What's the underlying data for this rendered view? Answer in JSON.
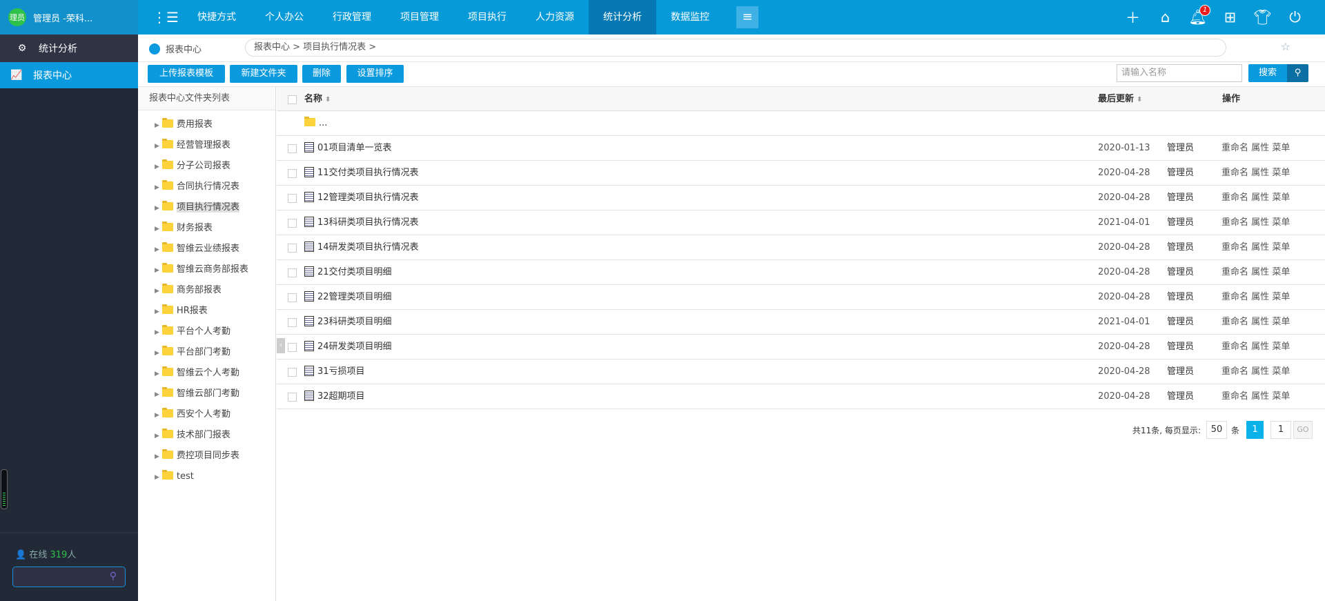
{
  "user": {
    "avatar_text": "理员",
    "name": "管理员 -荣科..."
  },
  "sidebar": {
    "section": "统计分析",
    "active_item": "报表中心",
    "online_label": "在线",
    "online_count": "319",
    "online_unit": "人"
  },
  "nav": {
    "items": [
      "快捷方式",
      "个人办公",
      "行政管理",
      "项目管理",
      "项目执行",
      "人力资源",
      "统计分析",
      "数据监控"
    ],
    "active": "统计分析",
    "notification_count": "1"
  },
  "breadcrumb": {
    "title": "报表中心",
    "path": "报表中心 > 项目执行情况表  >"
  },
  "toolbar": {
    "buttons": [
      "上传报表模板",
      "新建文件夹",
      "删除",
      "设置排序"
    ],
    "search_placeholder": "请输入名称",
    "search_label": "搜索"
  },
  "tree": {
    "header": "报表中心文件夹列表",
    "selected": "项目执行情况表",
    "items": [
      "费用报表",
      "经营管理报表",
      "分子公司报表",
      "合同执行情况表",
      "项目执行情况表",
      "财务报表",
      "智维云业绩报表",
      "智维云商务部报表",
      "商务部报表",
      "HR报表",
      "平台个人考勤",
      "平台部门考勤",
      "智维云个人考勤",
      "智维云部门考勤",
      "西安个人考勤",
      "技术部门报表",
      "费控项目同步表",
      "test"
    ]
  },
  "table": {
    "columns": {
      "name": "名称",
      "updated": "最后更新",
      "actions": "操作"
    },
    "parent_row": "...",
    "rows": [
      {
        "name": "01项目清单一览表",
        "date": "2020-01-13",
        "user": "管理员"
      },
      {
        "name": "11交付类项目执行情况表",
        "date": "2020-04-28",
        "user": "管理员"
      },
      {
        "name": "12管理类项目执行情况表",
        "date": "2020-04-28",
        "user": "管理员"
      },
      {
        "name": "13科研类项目执行情况表",
        "date": "2021-04-01",
        "user": "管理员"
      },
      {
        "name": "14研发类项目执行情况表",
        "date": "2020-04-28",
        "user": "管理员"
      },
      {
        "name": "21交付类项目明细",
        "date": "2020-04-28",
        "user": "管理员"
      },
      {
        "name": "22管理类项目明细",
        "date": "2020-04-28",
        "user": "管理员"
      },
      {
        "name": "23科研类项目明细",
        "date": "2021-04-01",
        "user": "管理员"
      },
      {
        "name": "24研发类项目明细",
        "date": "2020-04-28",
        "user": "管理员"
      },
      {
        "name": "31亏损项目",
        "date": "2020-04-28",
        "user": "管理员"
      },
      {
        "name": "32超期项目",
        "date": "2020-04-28",
        "user": "管理员"
      }
    ],
    "row_actions": [
      "重命名",
      "属性",
      "菜单"
    ]
  },
  "pager": {
    "total": "共11条, 每页显示:",
    "page_size": "50",
    "unit": "条",
    "current": "1",
    "goto_value": "1",
    "go": "GO"
  }
}
